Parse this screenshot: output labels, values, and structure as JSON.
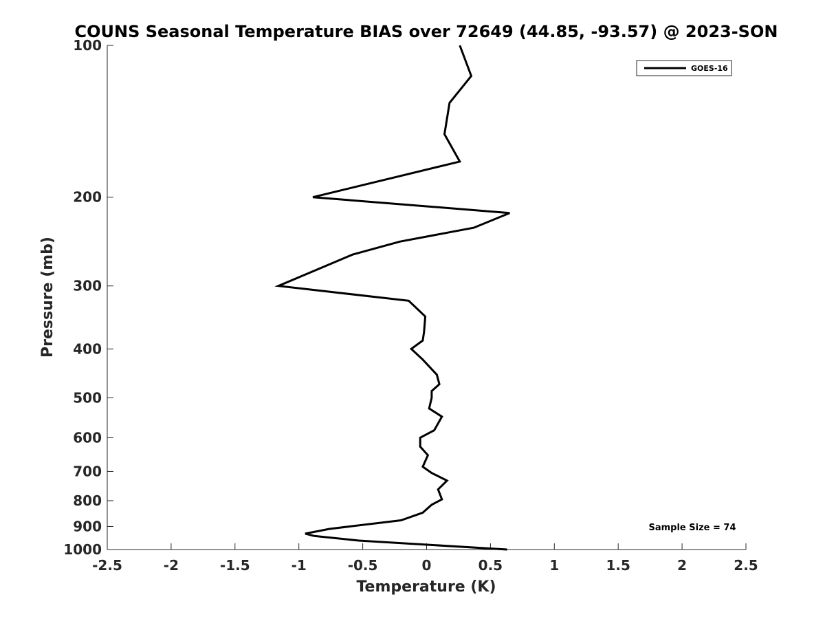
{
  "chart_data": {
    "type": "line",
    "title": "COUNS Seasonal Temperature BIAS over 72649 (44.85, -93.57) @ 2023-SON",
    "xlabel": "Temperature (K)",
    "ylabel": "Pressure (mb)",
    "xlim": [
      -2.5,
      2.5
    ],
    "ylim": [
      100,
      1000
    ],
    "yscale": "log",
    "yreversed": true,
    "xticks": [
      -2.5,
      -2,
      -1.5,
      -1,
      -0.5,
      0,
      0.5,
      1,
      1.5,
      2,
      2.5
    ],
    "xtick_labels": [
      "-2.5",
      "-2",
      "-1.5",
      "-1",
      "-0.5",
      "0",
      "0.5",
      "1",
      "1.5",
      "2",
      "2.5"
    ],
    "yticks": [
      100,
      200,
      300,
      400,
      500,
      600,
      700,
      800,
      900,
      1000
    ],
    "ytick_labels": [
      "100",
      "200",
      "300",
      "400",
      "500",
      "600",
      "700",
      "800",
      "900",
      "1000"
    ],
    "grid": false,
    "legend_position": "top-right",
    "series": [
      {
        "name": "GOES-16",
        "color": "#000000",
        "x": [
          0.26,
          0.35,
          0.18,
          0.14,
          0.26,
          -0.89,
          0.65,
          0.37,
          -0.21,
          -0.58,
          -1.16,
          -0.14,
          -0.01,
          -0.02,
          -0.03,
          -0.12,
          -0.03,
          0.08,
          0.1,
          0.04,
          0.04,
          0.02,
          0.12,
          0.06,
          -0.05,
          -0.05,
          0.01,
          -0.03,
          0.04,
          0.16,
          0.09,
          0.12,
          0.04,
          -0.03,
          -0.2,
          -0.76,
          -0.95,
          -0.88,
          -0.53,
          0.63
        ],
        "y": [
          100,
          115,
          130,
          150,
          170,
          200,
          215,
          230,
          245,
          260,
          300,
          321,
          345,
          370,
          385,
          400,
          420,
          450,
          470,
          485,
          500,
          525,
          545,
          580,
          600,
          625,
          650,
          685,
          705,
          730,
          760,
          795,
          815,
          845,
          875,
          910,
          930,
          940,
          960,
          1000
        ]
      }
    ],
    "legend": [
      "GOES-16"
    ],
    "annotations": [
      "Sample Size = 74"
    ]
  }
}
